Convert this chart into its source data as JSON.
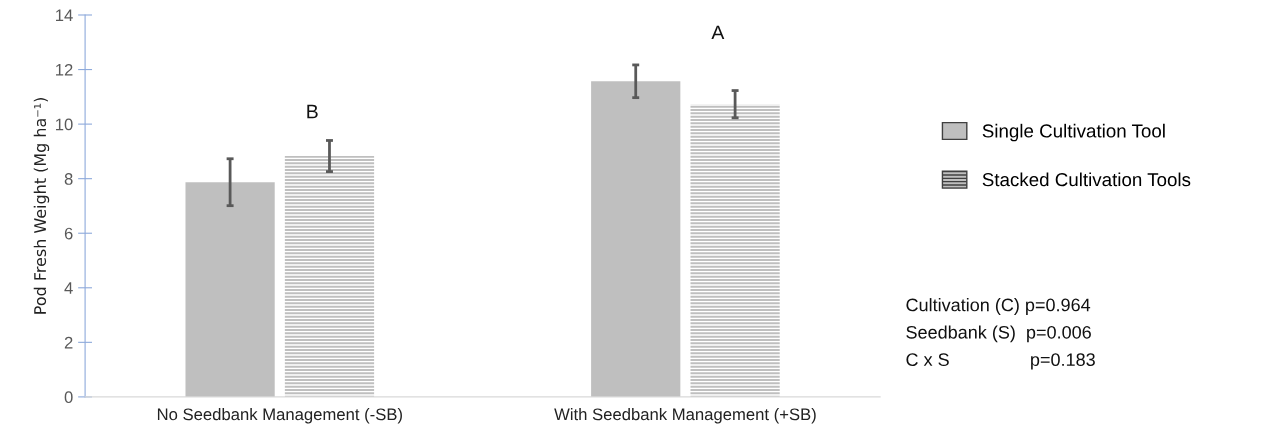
{
  "chart_data": {
    "type": "bar",
    "ylabel": "Pod Fresh Weight (Mg ha⁻¹)",
    "categories": [
      "No Seedbank Management (-SB)",
      "With Seedbank Management (+SB)"
    ],
    "series": [
      {
        "name": "Single Cultivation Tool",
        "color": "#bfbfbf",
        "values": [
          7.87,
          11.57
        ],
        "errors": [
          0.86,
          0.6
        ]
      },
      {
        "name": "Stacked Cultivation Tools",
        "color": "#bfbfbf",
        "values": [
          8.83,
          10.73
        ],
        "errors": [
          0.57,
          0.5
        ]
      }
    ],
    "ylim": [
      0,
      14
    ],
    "yticks": [
      0,
      2,
      4,
      6,
      8,
      10,
      12,
      14
    ],
    "grid": false,
    "legend": "right",
    "annotations": [
      "B",
      "A",
      "Cultivation (C) p=0.964",
      "Seedbank (S)  p=0.006",
      "C x S                p=0.183"
    ]
  }
}
